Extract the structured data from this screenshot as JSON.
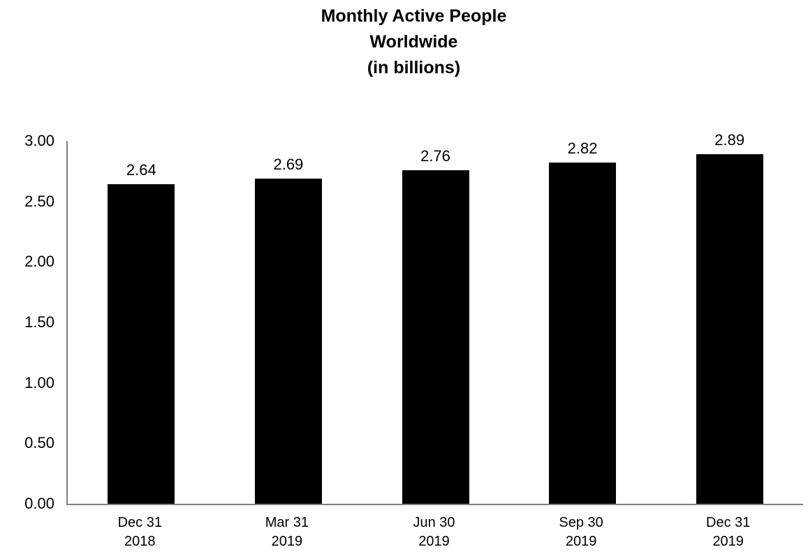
{
  "title": {
    "lines": [
      "Monthly Active People",
      "Worldwide",
      "(in billions)"
    ]
  },
  "chart_data": {
    "type": "bar",
    "title": "Monthly Active People Worldwide (in billions)",
    "categories": [
      "Dec 31 2018",
      "Mar 31 2019",
      "Jun 30 2019",
      "Sep 30 2019",
      "Dec 31 2019"
    ],
    "category_lines": [
      [
        "Dec 31",
        "2018"
      ],
      [
        "Mar 31",
        "2019"
      ],
      [
        "Jun 30",
        "2019"
      ],
      [
        "Sep 30",
        "2019"
      ],
      [
        "Dec 31",
        "2019"
      ]
    ],
    "values": [
      2.64,
      2.69,
      2.76,
      2.82,
      2.89
    ],
    "value_labels": [
      "2.64",
      "2.69",
      "2.76",
      "2.82",
      "2.89"
    ],
    "xlabel": "",
    "ylabel": "",
    "ylim": [
      0,
      3
    ],
    "yticks": [
      "0.00",
      "0.50",
      "1.00",
      "1.50",
      "2.00",
      "2.50",
      "3.00"
    ],
    "grid": false,
    "legend": false,
    "bar_color": "#000000",
    "axis_color": "#808080",
    "text_color": "#000000"
  }
}
